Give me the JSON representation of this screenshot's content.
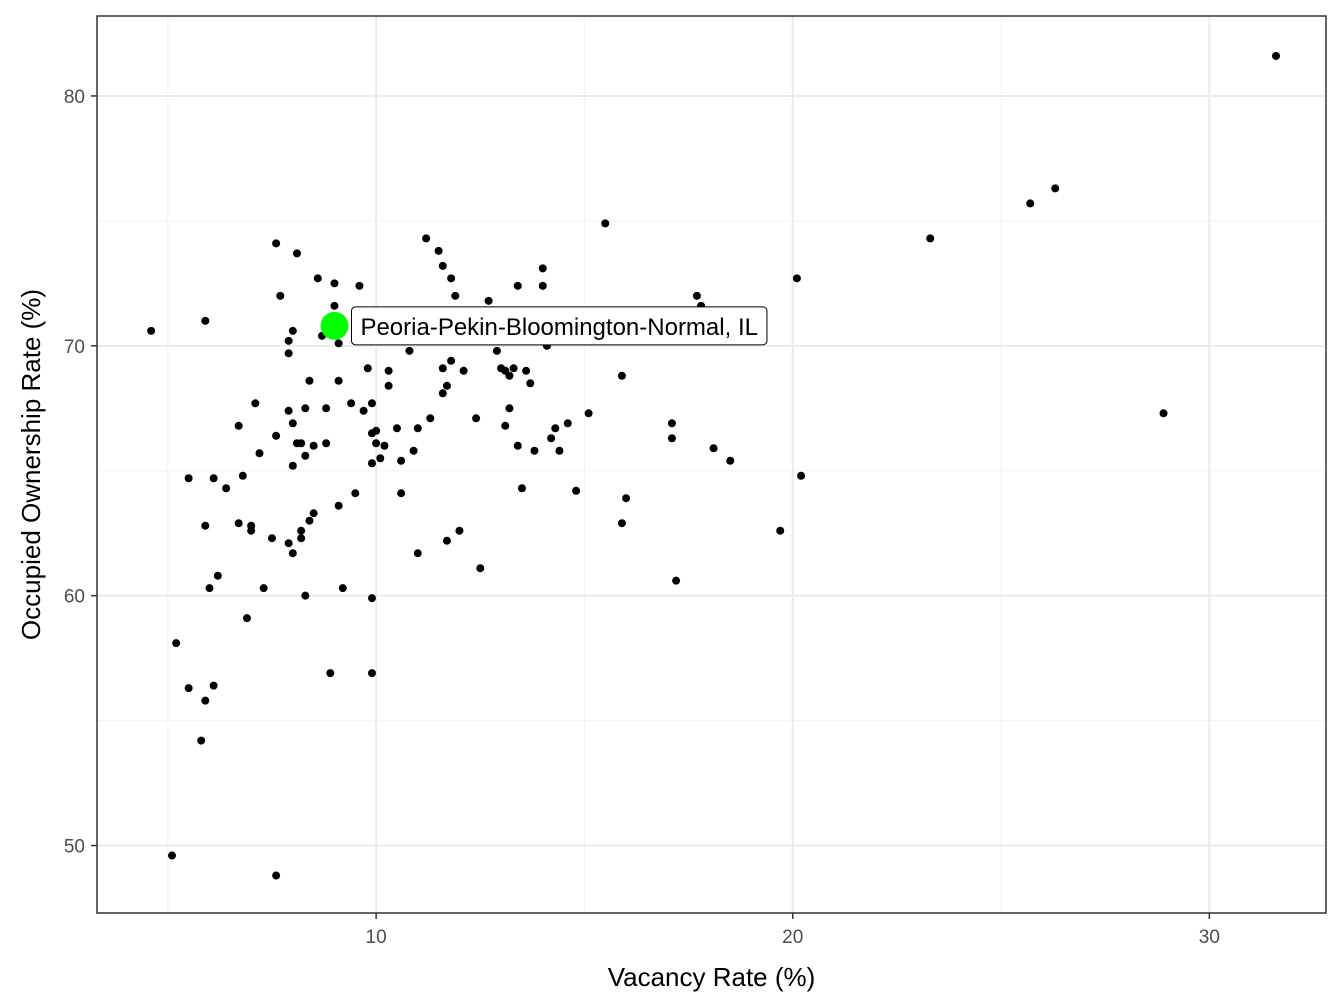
{
  "chart_data": {
    "type": "scatter",
    "xlabel": "Vacancy Rate (%)",
    "ylabel": "Occupied Ownership Rate (%)",
    "xlim": [
      3.3,
      32.8
    ],
    "ylim": [
      47.3,
      83.2
    ],
    "x_ticks": [
      10,
      20,
      30
    ],
    "y_ticks": [
      50,
      60,
      70,
      80
    ],
    "grid": true,
    "legend": "none",
    "point_color": "#000000",
    "highlight_color": "#00ff00",
    "series": [
      {
        "points": [
          [
            4.6,
            70.6
          ],
          [
            5.1,
            49.6
          ],
          [
            5.2,
            58.1
          ],
          [
            5.5,
            64.7
          ],
          [
            5.5,
            56.3
          ],
          [
            5.8,
            54.2
          ],
          [
            5.9,
            62.8
          ],
          [
            5.9,
            71.0
          ],
          [
            5.9,
            55.8
          ],
          [
            6.0,
            60.3
          ],
          [
            6.1,
            64.7
          ],
          [
            6.1,
            56.4
          ],
          [
            6.2,
            60.8
          ],
          [
            6.4,
            64.3
          ],
          [
            6.7,
            62.9
          ],
          [
            6.7,
            66.8
          ],
          [
            6.8,
            64.8
          ],
          [
            6.9,
            59.1
          ],
          [
            7.0,
            62.6
          ],
          [
            7.0,
            62.8
          ],
          [
            7.1,
            67.7
          ],
          [
            7.2,
            65.7
          ],
          [
            7.3,
            60.3
          ],
          [
            7.5,
            62.3
          ],
          [
            7.6,
            66.4
          ],
          [
            7.6,
            74.1
          ],
          [
            7.6,
            48.8
          ],
          [
            7.7,
            72.0
          ],
          [
            7.9,
            69.7
          ],
          [
            7.9,
            70.2
          ],
          [
            7.9,
            62.1
          ],
          [
            7.9,
            67.4
          ],
          [
            8.0,
            70.6
          ],
          [
            8.0,
            61.7
          ],
          [
            8.0,
            65.2
          ],
          [
            8.0,
            66.9
          ],
          [
            8.1,
            66.1
          ],
          [
            8.1,
            73.7
          ],
          [
            8.2,
            62.6
          ],
          [
            8.2,
            66.1
          ],
          [
            8.2,
            62.3
          ],
          [
            8.3,
            65.6
          ],
          [
            8.3,
            67.5
          ],
          [
            8.3,
            60.0
          ],
          [
            8.4,
            63.0
          ],
          [
            8.4,
            68.6
          ],
          [
            8.5,
            66.0
          ],
          [
            8.5,
            63.3
          ],
          [
            8.6,
            72.7
          ],
          [
            8.7,
            70.4
          ],
          [
            8.8,
            67.5
          ],
          [
            8.8,
            66.1
          ],
          [
            8.9,
            56.9
          ],
          [
            8.9,
            70.8
          ],
          [
            9.0,
            72.5
          ],
          [
            9.0,
            71.6
          ],
          [
            9.1,
            63.6
          ],
          [
            9.1,
            68.6
          ],
          [
            9.1,
            70.1
          ],
          [
            9.2,
            60.3
          ],
          [
            9.4,
            67.7
          ],
          [
            9.5,
            64.1
          ],
          [
            9.6,
            72.4
          ],
          [
            9.7,
            67.4
          ],
          [
            9.8,
            69.1
          ],
          [
            9.9,
            67.7
          ],
          [
            9.9,
            66.5
          ],
          [
            9.9,
            65.3
          ],
          [
            9.9,
            56.9
          ],
          [
            9.9,
            59.9
          ],
          [
            10.0,
            66.1
          ],
          [
            10.0,
            66.6
          ],
          [
            10.1,
            65.5
          ],
          [
            10.2,
            66.0
          ],
          [
            10.3,
            68.4
          ],
          [
            10.3,
            69.0
          ],
          [
            10.5,
            66.7
          ],
          [
            10.6,
            65.4
          ],
          [
            10.6,
            64.1
          ],
          [
            10.8,
            69.8
          ],
          [
            10.9,
            65.8
          ],
          [
            11.0,
            66.7
          ],
          [
            11.0,
            61.7
          ],
          [
            11.2,
            74.3
          ],
          [
            11.3,
            67.1
          ],
          [
            11.5,
            73.8
          ],
          [
            11.6,
            73.2
          ],
          [
            11.6,
            69.1
          ],
          [
            11.6,
            68.1
          ],
          [
            11.7,
            62.2
          ],
          [
            11.7,
            68.4
          ],
          [
            11.8,
            69.4
          ],
          [
            11.8,
            72.7
          ],
          [
            11.9,
            72.0
          ],
          [
            12.0,
            62.6
          ],
          [
            12.1,
            69.0
          ],
          [
            12.4,
            67.1
          ],
          [
            12.5,
            61.1
          ],
          [
            12.7,
            71.8
          ],
          [
            12.9,
            69.8
          ],
          [
            13.0,
            69.1
          ],
          [
            13.1,
            69.0
          ],
          [
            13.1,
            66.8
          ],
          [
            13.2,
            67.5
          ],
          [
            13.2,
            68.8
          ],
          [
            13.3,
            69.1
          ],
          [
            13.4,
            66.0
          ],
          [
            13.4,
            72.4
          ],
          [
            13.5,
            64.3
          ],
          [
            13.6,
            69.0
          ],
          [
            13.7,
            68.5
          ],
          [
            13.8,
            65.8
          ],
          [
            14.0,
            73.1
          ],
          [
            14.0,
            72.4
          ],
          [
            14.1,
            70.0
          ],
          [
            14.2,
            66.3
          ],
          [
            14.3,
            66.7
          ],
          [
            14.4,
            65.8
          ],
          [
            14.6,
            71.4
          ],
          [
            14.6,
            66.9
          ],
          [
            14.8,
            64.2
          ],
          [
            15.1,
            67.3
          ],
          [
            15.5,
            74.9
          ],
          [
            15.9,
            68.8
          ],
          [
            15.9,
            62.9
          ],
          [
            16.0,
            63.9
          ],
          [
            17.2,
            60.6
          ],
          [
            17.1,
            66.9
          ],
          [
            17.1,
            66.3
          ],
          [
            17.7,
            72.0
          ],
          [
            17.8,
            71.6
          ],
          [
            18.1,
            65.9
          ],
          [
            18.5,
            65.4
          ],
          [
            19.7,
            62.6
          ],
          [
            20.1,
            72.7
          ],
          [
            20.2,
            64.8
          ],
          [
            23.3,
            74.3
          ],
          [
            25.7,
            75.7
          ],
          [
            26.3,
            76.3
          ],
          [
            28.9,
            67.3
          ],
          [
            31.6,
            81.6
          ]
        ]
      }
    ],
    "highlight": {
      "label": "Peoria-Pekin-Bloomington-Normal, IL",
      "x": 9.0,
      "y": 70.8
    }
  }
}
